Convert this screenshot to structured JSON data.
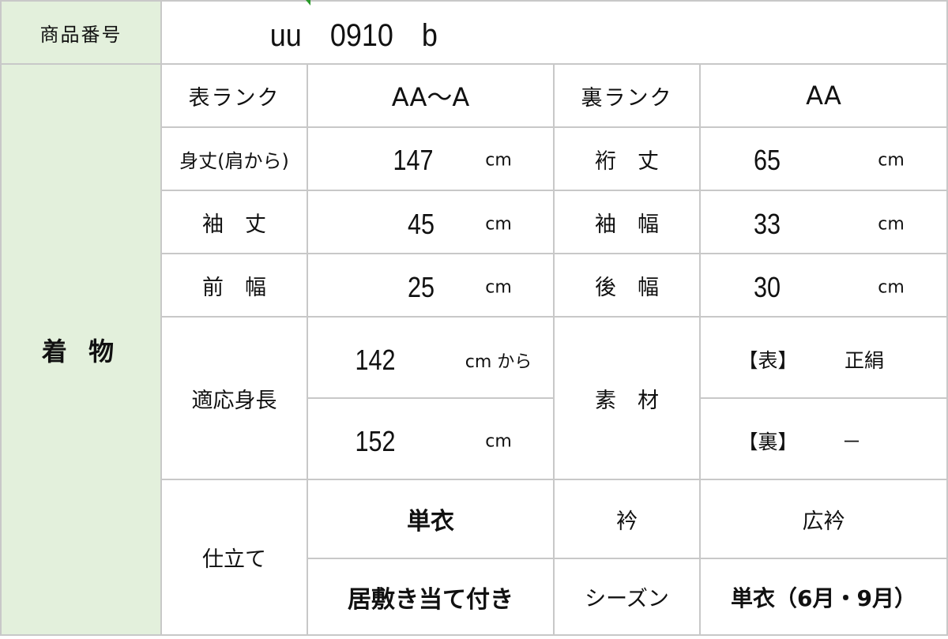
{
  "product_number": {
    "label": "商品番号",
    "value": "uu　0910　b"
  },
  "section_label": "着 物",
  "rows": {
    "front_rank": {
      "label": "表ランク",
      "value": "AA～A"
    },
    "back_rank": {
      "label": "裏ランク",
      "value": "AA"
    },
    "mitake": {
      "label": "身丈(肩から)",
      "value": "147",
      "unit": "cm"
    },
    "yuki": {
      "label": "裄　丈",
      "value": "65",
      "unit": "cm"
    },
    "sodetake": {
      "label": "袖　丈",
      "value": "45",
      "unit": "cm"
    },
    "sodehaba": {
      "label": "袖　幅",
      "value": "33",
      "unit": "cm"
    },
    "maehaba": {
      "label": "前　幅",
      "value": "25",
      "unit": "cm"
    },
    "ushirohaba": {
      "label": "後　幅",
      "value": "30",
      "unit": "cm"
    },
    "height": {
      "label": "適応身長",
      "from_value": "142",
      "from_unit": "cm から",
      "to_value": "152",
      "to_unit": "cm"
    },
    "material": {
      "label": "素　材",
      "front_tag": "【表】",
      "front_value": "正絹",
      "back_tag": "【裏】",
      "back_value": "－"
    },
    "tailoring": {
      "label": "仕立て",
      "type": "単衣",
      "extra": "居敷き当て付き"
    },
    "collar": {
      "label": "衿",
      "value": "広衿"
    },
    "season": {
      "label": "シーズン",
      "value": "単衣（6月・9月）"
    }
  },
  "colors": {
    "label_bg": "#e3f0dc",
    "border": "#c8c8c8"
  }
}
